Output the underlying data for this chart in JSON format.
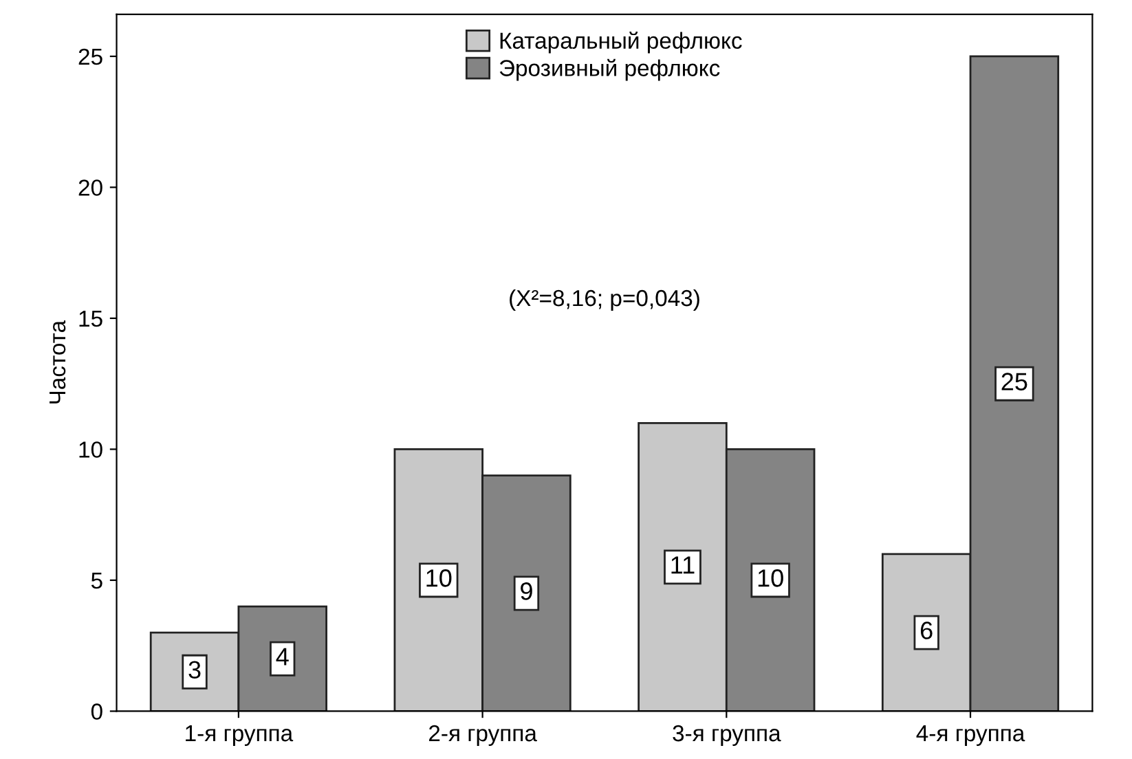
{
  "chart_data": {
    "type": "bar",
    "ylabel": "Частота",
    "categories": [
      "1-я группа",
      "2-я группа",
      "3-я группа",
      "4-я группа"
    ],
    "series": [
      {
        "name": "Катаральный рефлюкс",
        "color": "#c8c8c8",
        "values": [
          3,
          10,
          11,
          6
        ]
      },
      {
        "name": "Эрозивный рефлюкс",
        "color": "#848484",
        "values": [
          4,
          9,
          10,
          25
        ]
      }
    ],
    "ylim": [
      0,
      26.6
    ],
    "yticks": [
      0,
      5,
      10,
      15,
      20,
      25
    ],
    "data_labels": true,
    "grid": false,
    "legend": "top",
    "annotations": [
      "(X²=8,16; p=0,043)"
    ]
  }
}
